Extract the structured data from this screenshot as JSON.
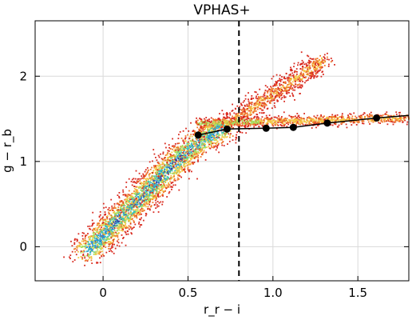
{
  "chart_data": {
    "type": "scatter",
    "title": "VPHAS+",
    "xlabel": "r_r − i",
    "ylabel": "g − r_b",
    "xlim": [
      -0.4,
      1.8
    ],
    "ylim": [
      -0.4,
      2.65
    ],
    "grid": true,
    "x_ticks": [
      0,
      0.5,
      1.0,
      1.5
    ],
    "x_tick_labels": [
      "0",
      "0.5",
      "1.0",
      "1.5"
    ],
    "y_ticks": [
      0,
      1,
      2
    ],
    "y_tick_labels": [
      "0",
      "1",
      "2"
    ],
    "vertical_reference_line": {
      "x": 0.8,
      "style": "dashed",
      "color": "#000000"
    },
    "density_colormap": [
      "#2f3fa8",
      "#2a8fd6",
      "#3dc4b8",
      "#a6dd5a",
      "#f3c744",
      "#f07a2c",
      "#d92a1f"
    ],
    "density_background": {
      "main_locus": [
        [
          -0.1,
          -0.05
        ],
        [
          0.05,
          0.25
        ],
        [
          0.2,
          0.55
        ],
        [
          0.35,
          0.85
        ],
        [
          0.5,
          1.15
        ],
        [
          0.7,
          1.4
        ]
      ],
      "upper_branch": [
        [
          0.7,
          1.4
        ],
        [
          0.85,
          1.6
        ],
        [
          1.0,
          1.8
        ],
        [
          1.15,
          2.0
        ],
        [
          1.3,
          2.2
        ]
      ],
      "horizontal_branch": [
        [
          0.55,
          1.45
        ],
        [
          0.8,
          1.47
        ],
        [
          1.1,
          1.48
        ],
        [
          1.4,
          1.5
        ],
        [
          1.8,
          1.52
        ]
      ]
    },
    "series": [
      {
        "x": [
          0.56,
          0.73,
          0.96,
          1.12,
          1.32,
          1.61,
          1.8
        ],
        "y": [
          1.31,
          1.38,
          1.39,
          1.4,
          1.45,
          1.51,
          1.54
        ],
        "marker": "circle",
        "marker_indices": [
          0,
          1,
          2,
          3,
          4,
          5
        ],
        "color": "#000000"
      }
    ]
  }
}
